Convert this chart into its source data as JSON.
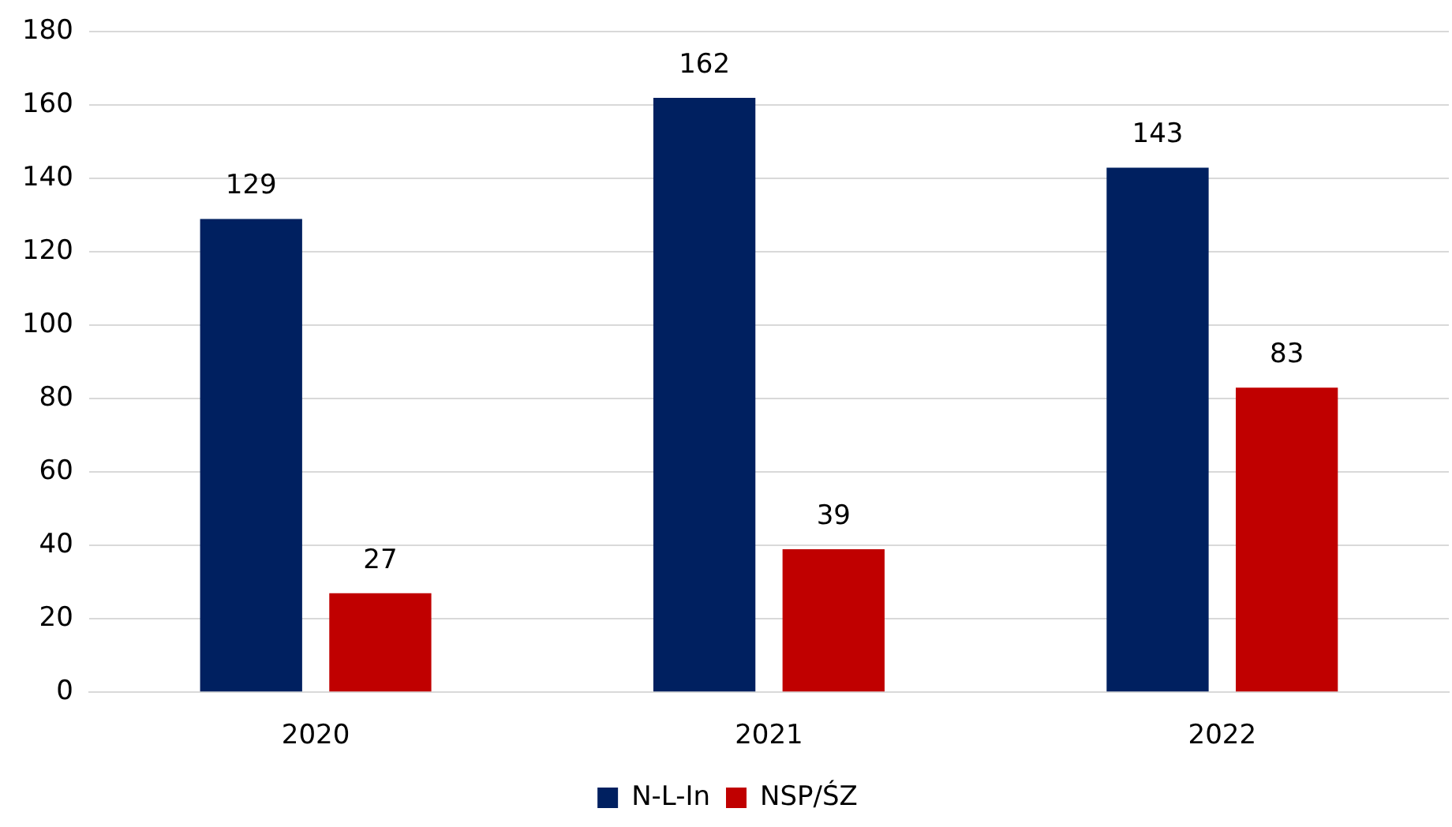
{
  "chart_data": {
    "type": "bar",
    "categories": [
      "2020",
      "2021",
      "2022"
    ],
    "series": [
      {
        "name": "N-L-In",
        "color": "#002060",
        "values": [
          129,
          162,
          143
        ]
      },
      {
        "name": "NSP/ŚZ",
        "color": "#c00000",
        "values": [
          27,
          39,
          83
        ]
      }
    ],
    "ylim": [
      0,
      180
    ],
    "yticks": [
      0,
      20,
      40,
      60,
      80,
      100,
      120,
      140,
      160,
      180
    ],
    "grid": "y",
    "legend": "bottom",
    "data_labels": true
  }
}
